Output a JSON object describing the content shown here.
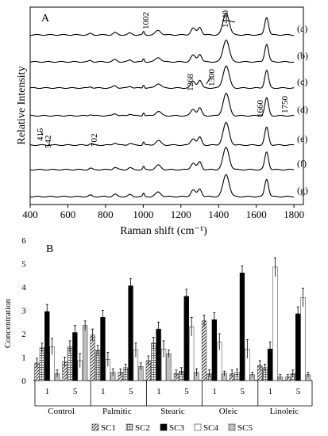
{
  "panel_a": {
    "label": "A",
    "chart_data": {
      "type": "line",
      "xlabel": "Raman shift (cm⁻¹)",
      "ylabel": "Relative Intensity",
      "xlim": [
        400,
        1850
      ],
      "x_ticks": [
        400,
        600,
        800,
        1000,
        1200,
        1400,
        1600,
        1800
      ],
      "grid": false,
      "series_labels": [
        "(a)",
        "(b)",
        "(c)",
        "(d)",
        "(e)",
        "(f)",
        "(g)"
      ],
      "peak_annotations": [
        "415",
        "542",
        "702",
        "1002",
        "1268",
        "1300",
        "1440",
        "1660",
        "1750"
      ]
    }
  },
  "panel_b": {
    "label": "B",
    "chart_data": {
      "type": "bar",
      "ylabel": "Concentration",
      "ylim": [
        0,
        6
      ],
      "y_ticks": [
        0,
        1,
        2,
        3,
        4,
        5,
        6
      ],
      "grid": false,
      "legend_position": "bottom",
      "groups": [
        "Control",
        "Palmitic",
        "Stearic",
        "Oleic",
        "Linoleic"
      ],
      "subgroups": [
        "1",
        "5"
      ],
      "series": [
        {
          "name": "SC1",
          "values": [
            0.75,
            0.8,
            1.95,
            0.35,
            0.85,
            0.3,
            2.55,
            0.3,
            0.65,
            0.15
          ]
        },
        {
          "name": "SC2",
          "values": [
            1.4,
            1.45,
            1.3,
            0.55,
            1.6,
            0.4,
            0.3,
            0.35,
            0.55,
            0.3
          ]
        },
        {
          "name": "SC3",
          "values": [
            2.95,
            2.05,
            2.7,
            4.05,
            2.2,
            3.6,
            2.6,
            4.6,
            1.35,
            2.85
          ]
        },
        {
          "name": "SC4",
          "values": [
            1.45,
            0.85,
            0.9,
            1.3,
            1.35,
            2.3,
            1.65,
            1.35,
            4.85,
            3.55
          ]
        },
        {
          "name": "SC5",
          "values": [
            0.3,
            2.35,
            0.35,
            0.6,
            1.15,
            0.35,
            0.3,
            0.25,
            0.15,
            0.25
          ]
        }
      ],
      "errors": [
        [
          0.2,
          0.2,
          0.25,
          0.15,
          0.2,
          0.15,
          0.25,
          0.15,
          0.2,
          0.1
        ],
        [
          0.2,
          0.25,
          0.2,
          0.15,
          0.25,
          0.15,
          0.15,
          0.15,
          0.15,
          0.15
        ],
        [
          0.3,
          0.3,
          0.3,
          0.3,
          0.3,
          0.3,
          0.3,
          0.3,
          0.3,
          0.3
        ],
        [
          0.35,
          0.3,
          0.3,
          0.3,
          0.35,
          0.4,
          0.35,
          0.4,
          0.4,
          0.4
        ],
        [
          0.15,
          0.2,
          0.15,
          0.15,
          0.15,
          0.15,
          0.1,
          0.1,
          0.1,
          0.1
        ]
      ]
    }
  }
}
